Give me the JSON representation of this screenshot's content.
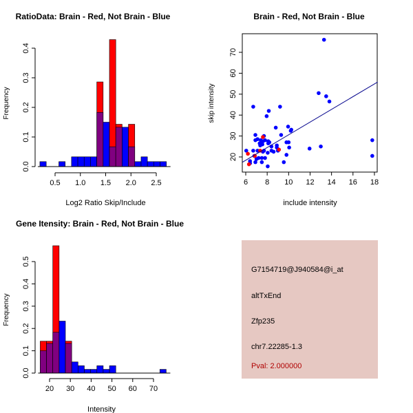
{
  "chart_data": [
    {
      "type": "bar",
      "title": "RatioData: Brain - Red, Not Brain - Blue",
      "xlabel": "Log2 Ratio Skip/Include",
      "ylabel": "Frequency",
      "bin_start": 0.2,
      "bin_width": 0.125,
      "xticks": [
        "0.5",
        "1.0",
        "1.5",
        "2.0",
        "2.5"
      ],
      "xtick_values": [
        0.5,
        1.0,
        1.5,
        2.0,
        2.5
      ],
      "yticks": [
        "0.0",
        "0.1",
        "0.2",
        "0.3",
        "0.4"
      ],
      "ytick_values": [
        0,
        0.1,
        0.2,
        0.3,
        0.4
      ],
      "series": [
        {
          "name": "Brain",
          "color": "#ff0000",
          "values": [
            0,
            0,
            0,
            0,
            0,
            0,
            0,
            0,
            0,
            0.286,
            0,
            0.429,
            0.143,
            0,
            0.143,
            0,
            0,
            0,
            0,
            0
          ]
        },
        {
          "name": "Not Brain",
          "color": "#0000ff",
          "values": [
            0.0167,
            0,
            0,
            0.0167,
            0,
            0.033,
            0.033,
            0.033,
            0.033,
            0.183,
            0.15,
            0.067,
            0.133,
            0.133,
            0.067,
            0.0167,
            0.033,
            0.0167,
            0.0167,
            0.0167
          ]
        }
      ],
      "overlap_color": "#800080"
    },
    {
      "type": "scatter",
      "title": "Brain - Red, Not Brain - Blue",
      "xlabel": "include intensity",
      "ylabel": "skip intensity",
      "xlim": [
        5.7,
        18.3
      ],
      "ylim": [
        12.5,
        78.5
      ],
      "xticks": [
        "6",
        "8",
        "10",
        "12",
        "14",
        "16",
        "18"
      ],
      "xtick_values": [
        6,
        8,
        10,
        12,
        14,
        16,
        18
      ],
      "yticks": [
        "20",
        "30",
        "40",
        "50",
        "60",
        "70"
      ],
      "ytick_values": [
        20,
        30,
        40,
        50,
        60,
        70
      ],
      "series": [
        {
          "name": "Not Brain",
          "color": "#0000ff",
          "points": [
            [
              6.05,
              23
            ],
            [
              6.4,
              17
            ],
            [
              6.4,
              18
            ],
            [
              6.7,
              44
            ],
            [
              6.7,
              23
            ],
            [
              6.8,
              20.5
            ],
            [
              6.9,
              30.5
            ],
            [
              6.9,
              28
            ],
            [
              6.9,
              17.5
            ],
            [
              7.0,
              19
            ],
            [
              7.1,
              23
            ],
            [
              7.1,
              28.5
            ],
            [
              7.2,
              19.5
            ],
            [
              7.3,
              26.5
            ],
            [
              7.35,
              25.5
            ],
            [
              7.4,
              28
            ],
            [
              7.45,
              27
            ],
            [
              7.5,
              17.5
            ],
            [
              7.5,
              19.5
            ],
            [
              7.55,
              26
            ],
            [
              7.6,
              22.5
            ],
            [
              7.6,
              27.5
            ],
            [
              7.7,
              30
            ],
            [
              7.7,
              23
            ],
            [
              7.8,
              19.5
            ],
            [
              7.8,
              28
            ],
            [
              7.95,
              39.5
            ],
            [
              8.05,
              15.5
            ],
            [
              8.05,
              22
            ],
            [
              8.1,
              27.5
            ],
            [
              8.1,
              26.5
            ],
            [
              8.15,
              42
            ],
            [
              8.2,
              27
            ],
            [
              8.4,
              25
            ],
            [
              8.4,
              23
            ],
            [
              8.6,
              22.5
            ],
            [
              8.8,
              34
            ],
            [
              8.9,
              25.5
            ],
            [
              8.9,
              24.5
            ],
            [
              9.0,
              23
            ],
            [
              9.2,
              44
            ],
            [
              9.3,
              30.5
            ],
            [
              9.55,
              17.5
            ],
            [
              9.8,
              21
            ],
            [
              9.8,
              27
            ],
            [
              9.95,
              34.5
            ],
            [
              10.0,
              27
            ],
            [
              10.05,
              24.5
            ],
            [
              10.2,
              32.5
            ],
            [
              10.25,
              33
            ],
            [
              11.95,
              24
            ],
            [
              12.8,
              50.5
            ],
            [
              13.0,
              25
            ],
            [
              13.3,
              76
            ],
            [
              13.5,
              49
            ],
            [
              13.8,
              46.5
            ],
            [
              17.8,
              28
            ],
            [
              17.8,
              20.5
            ]
          ]
        },
        {
          "name": "Brain",
          "color": "#ff0000",
          "points": [
            [
              6.2,
              21.5
            ],
            [
              6.3,
              16.5
            ],
            [
              6.85,
              20.5
            ],
            [
              7.35,
              23
            ],
            [
              7.6,
              29.5
            ],
            [
              9.1,
              23.5
            ]
          ]
        }
      ],
      "fit_line": {
        "color": "#00008b",
        "from": [
          5.7,
          17.5
        ],
        "to": [
          18.3,
          55.8
        ]
      }
    },
    {
      "type": "bar",
      "title": "Gene Itensity: Brain - Red, Not Brain - Blue",
      "xlabel": "Intensity",
      "ylabel": "Frequency",
      "bin_start": 15.5,
      "bin_width": 3.03,
      "xticks": [
        "20",
        "30",
        "40",
        "50",
        "60",
        "70"
      ],
      "xtick_values": [
        20,
        30,
        40,
        50,
        60,
        70
      ],
      "yticks": [
        "0.0",
        "0.1",
        "0.2",
        "0.3",
        "0.4",
        "0.5"
      ],
      "ytick_values": [
        0,
        0.1,
        0.2,
        0.3,
        0.4,
        0.5
      ],
      "series": [
        {
          "name": "Brain",
          "color": "#ff0000",
          "values": [
            0.143,
            0.143,
            0.571,
            0,
            0.143,
            0,
            0,
            0,
            0,
            0,
            0,
            0,
            0,
            0,
            0,
            0,
            0,
            0,
            0,
            0
          ]
        },
        {
          "name": "Not Brain",
          "color": "#0000ff",
          "values": [
            0.1,
            0.133,
            0.183,
            0.233,
            0.133,
            0.05,
            0.033,
            0.0167,
            0.0167,
            0.033,
            0.0167,
            0.033,
            0,
            0,
            0,
            0,
            0,
            0,
            0,
            0.0167
          ]
        }
      ],
      "overlap_color": "#800080"
    }
  ],
  "info": {
    "probe": "G7154719@J940584@i_at",
    "event": "altTxEnd",
    "gene": "Zfp235",
    "location": "chr7.22285-1.3",
    "pval": "Pval: 2.000000"
  }
}
